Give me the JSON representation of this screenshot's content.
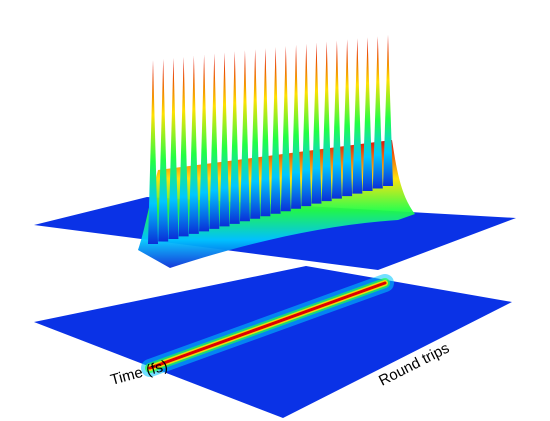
{
  "chart_data": {
    "type": "surface3d",
    "title": "",
    "xlabel": "Time (fs)",
    "ylabel": "Round trips",
    "zlabel": "",
    "colormap": "jet",
    "background": "#ffffff",
    "surface": {
      "description_of_shape": "single soliton-like pulse repeated every round trip; narrow in time, tall spike at each round trip",
      "round_trips_shown": 24,
      "pulse_shape": "sech2",
      "peak_relative": 1.0,
      "baseline_relative": 0.0,
      "pedestal_ripple": true
    },
    "projection": {
      "type": "heatmap",
      "location": "floor",
      "description_of_shape": "bright ridge along the round-trip axis at the pulse time"
    },
    "grid": false,
    "legend": "none",
    "colors": {
      "low": "#0a2fd8",
      "mid_low": "#00c8ff",
      "mid": "#22ff44",
      "mid_high": "#ffe000",
      "high": "#e00000"
    }
  }
}
